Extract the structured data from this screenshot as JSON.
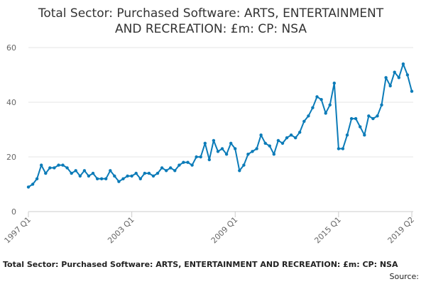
{
  "chart_data": {
    "type": "line",
    "title_lines": [
      "Total Sector: Purchased Software: ARTS, ENTERTAINMENT",
      "AND RECREATION: £m: CP: NSA"
    ],
    "xlabel": "",
    "ylabel": "",
    "ylim": [
      0,
      60
    ],
    "y_ticks": [
      0,
      20,
      40,
      60
    ],
    "x_ticks": [
      "1997 Q1",
      "2003 Q1",
      "2009 Q1",
      "2015 Q1",
      "2019 Q2"
    ],
    "grid": "horizontal",
    "legend": "none",
    "color": "#0b7bb8",
    "x_range": [
      "1997 Q1",
      "2019 Q2"
    ],
    "series": [
      {
        "name": "",
        "x": [
          "1997 Q1",
          "1997 Q2",
          "1997 Q3",
          "1997 Q4",
          "1998 Q1",
          "1998 Q2",
          "1998 Q3",
          "1998 Q4",
          "1999 Q1",
          "1999 Q2",
          "1999 Q3",
          "1999 Q4",
          "2000 Q1",
          "2000 Q2",
          "2000 Q3",
          "2000 Q4",
          "2001 Q1",
          "2001 Q2",
          "2001 Q3",
          "2001 Q4",
          "2002 Q1",
          "2002 Q2",
          "2002 Q3",
          "2002 Q4",
          "2003 Q1",
          "2003 Q2",
          "2003 Q3",
          "2003 Q4",
          "2004 Q1",
          "2004 Q2",
          "2004 Q3",
          "2004 Q4",
          "2005 Q1",
          "2005 Q2",
          "2005 Q3",
          "2005 Q4",
          "2006 Q1",
          "2006 Q2",
          "2006 Q3",
          "2006 Q4",
          "2007 Q1",
          "2007 Q2",
          "2007 Q3",
          "2007 Q4",
          "2008 Q1",
          "2008 Q2",
          "2008 Q3",
          "2008 Q4",
          "2009 Q1",
          "2009 Q2",
          "2009 Q3",
          "2009 Q4",
          "2010 Q1",
          "2010 Q2",
          "2010 Q3",
          "2010 Q4",
          "2011 Q1",
          "2011 Q2",
          "2011 Q3",
          "2011 Q4",
          "2012 Q1",
          "2012 Q2",
          "2012 Q3",
          "2012 Q4",
          "2013 Q1",
          "2013 Q2",
          "2013 Q3",
          "2013 Q4",
          "2014 Q1",
          "2014 Q2",
          "2014 Q3",
          "2014 Q4",
          "2015 Q1",
          "2015 Q2",
          "2015 Q3",
          "2015 Q4",
          "2016 Q1",
          "2016 Q2",
          "2016 Q3",
          "2016 Q4",
          "2017 Q1",
          "2017 Q2",
          "2017 Q3",
          "2017 Q4",
          "2018 Q1",
          "2018 Q2",
          "2018 Q3",
          "2018 Q4",
          "2019 Q1",
          "2019 Q2"
        ],
        "values": [
          9,
          10,
          12,
          17,
          14,
          16,
          16,
          17,
          17,
          16,
          14,
          15,
          13,
          15,
          13,
          14,
          12,
          12,
          12,
          15,
          13,
          11,
          12,
          13,
          13,
          14,
          12,
          14,
          14,
          13,
          14,
          16,
          15,
          16,
          15,
          17,
          18,
          18,
          17,
          20,
          20,
          25,
          19,
          26,
          22,
          23,
          21,
          25,
          23,
          15,
          17,
          21,
          22,
          23,
          28,
          25,
          24,
          21,
          26,
          25,
          27,
          28,
          27,
          29,
          33,
          35,
          38,
          42,
          41,
          36,
          39,
          47,
          23,
          23,
          28,
          34,
          34,
          31,
          28,
          35,
          34,
          35,
          39,
          49,
          46,
          51,
          49,
          54,
          50,
          44
        ]
      }
    ]
  },
  "footer": {
    "title": "Total Sector: Purchased Software: ARTS, ENTERTAINMENT AND RECREATION: £m: CP: NSA",
    "source": "Source: "
  }
}
